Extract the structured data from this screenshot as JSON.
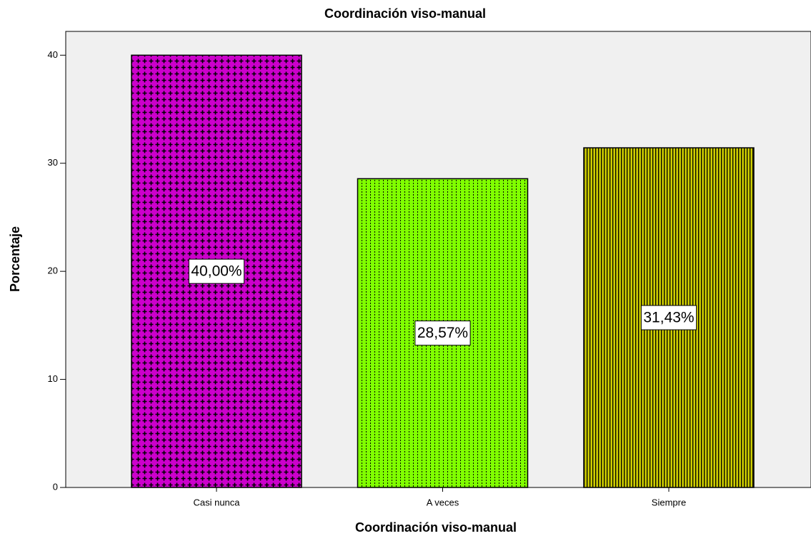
{
  "chart_data": {
    "type": "bar",
    "title": "Coordinación viso-manual",
    "x_label": "Coordinación viso-manual",
    "y_label": "Porcentaje",
    "categories": [
      "Casi nunca",
      "A veces",
      "Siempre"
    ],
    "values": [
      40,
      28.57,
      31.43
    ],
    "value_labels": [
      "40,00%",
      "28,57%",
      "31,43%"
    ],
    "colors": [
      "#cc00cc",
      "#80ff00",
      "#cccc00"
    ],
    "ylim": [
      0,
      42.2
    ],
    "yticks": [
      0,
      10,
      20,
      30,
      40
    ]
  }
}
